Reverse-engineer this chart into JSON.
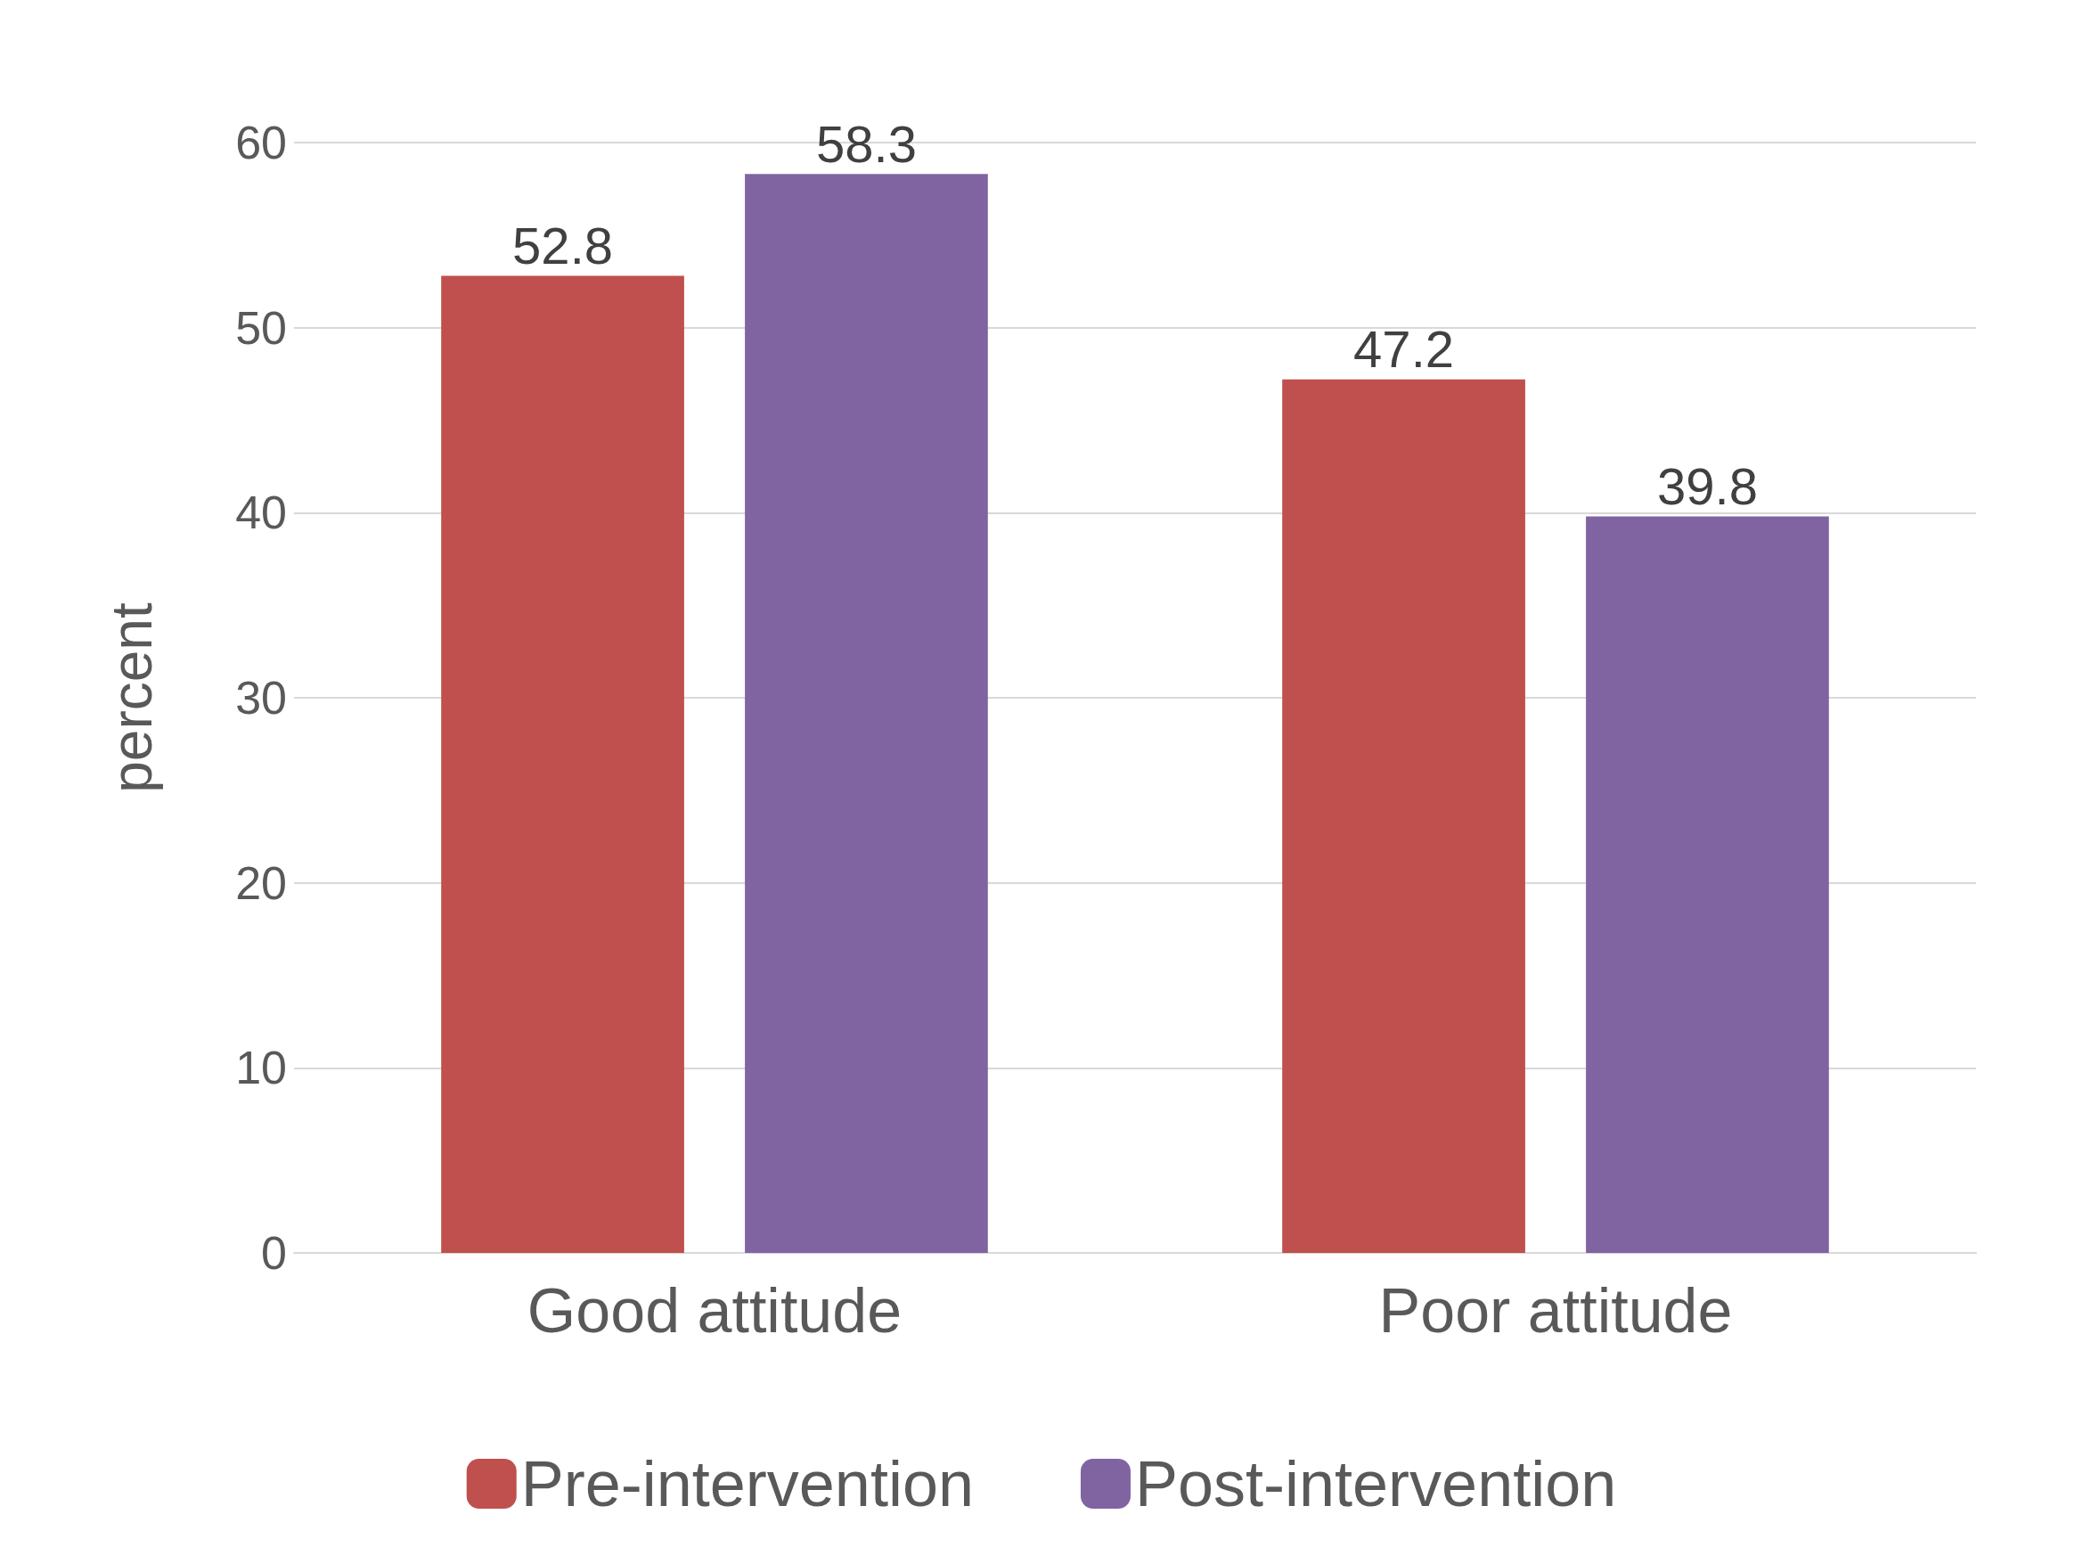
{
  "chart_data": {
    "type": "bar",
    "ylabel": "percent",
    "categories": [
      "Good attitude",
      "Poor attitude"
    ],
    "series": [
      {
        "name": "Pre-intervention",
        "color": "#c0504d",
        "values": [
          52.8,
          47.2
        ]
      },
      {
        "name": "Post-intervention",
        "color": "#8064a2",
        "values": [
          58.3,
          39.8
        ]
      }
    ],
    "ylim": [
      0,
      60
    ],
    "yticks": [
      0,
      10,
      20,
      30,
      40,
      50,
      60
    ],
    "grid": "y",
    "legend": "bottom",
    "data_labels": true
  }
}
